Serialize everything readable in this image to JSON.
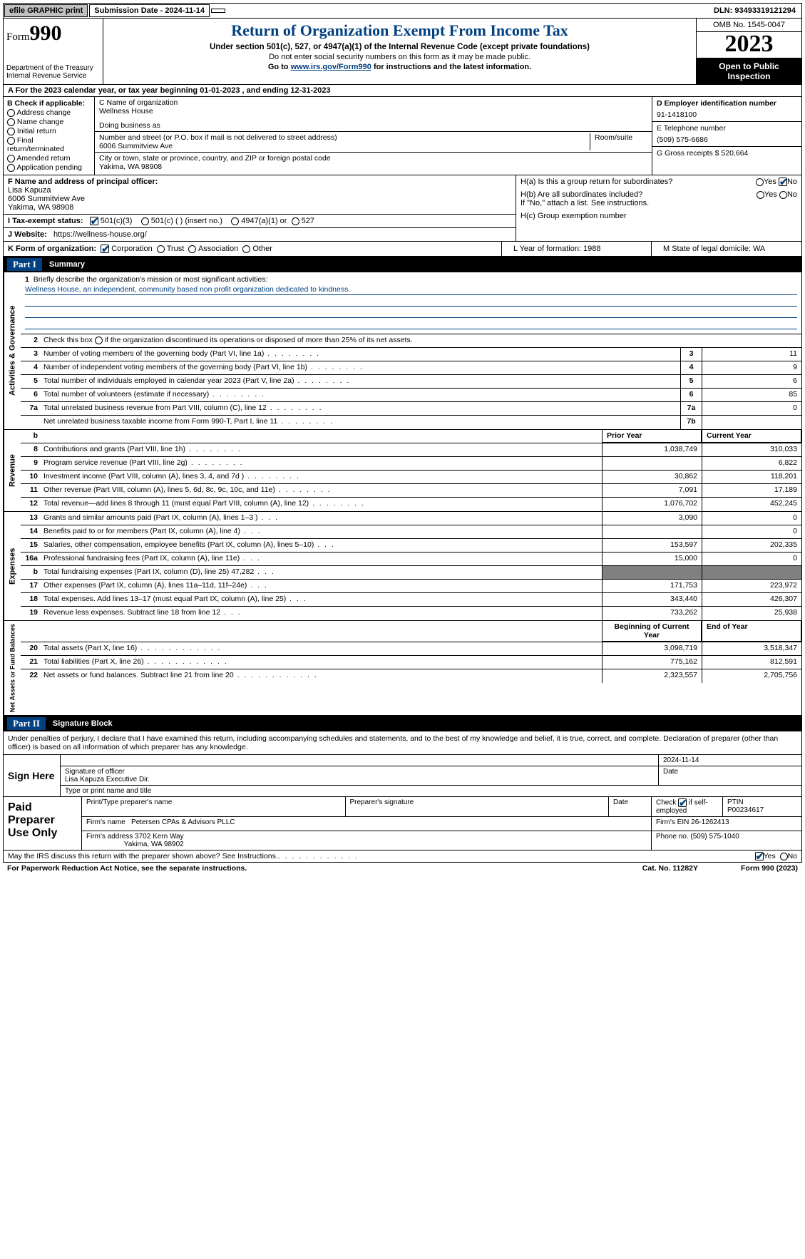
{
  "topbar": {
    "efile": "efile GRAPHIC print",
    "submission_label": "Submission Date - 2024-11-14",
    "dln_label": "DLN: 93493319121294"
  },
  "header": {
    "form_word": "Form",
    "form_num": "990",
    "dept": "Department of the Treasury Internal Revenue Service",
    "title": "Return of Organization Exempt From Income Tax",
    "sub1": "Under section 501(c), 527, or 4947(a)(1) of the Internal Revenue Code (except private foundations)",
    "sub2": "Do not enter social security numbers on this form as it may be made public.",
    "sub3_pre": "Go to ",
    "sub3_link": "www.irs.gov/Form990",
    "sub3_post": " for instructions and the latest information.",
    "omb": "OMB No. 1545-0047",
    "year": "2023",
    "open": "Open to Public Inspection"
  },
  "rowA": "A For the 2023 calendar year, or tax year beginning 01-01-2023   , and ending 12-31-2023",
  "boxB": {
    "label": "B Check if applicable:",
    "items": [
      "Address change",
      "Name change",
      "Initial return",
      "Final return/terminated",
      "Amended return",
      "Application pending"
    ]
  },
  "boxC": {
    "name_label": "C Name of organization",
    "name": "Wellness House",
    "dba_label": "Doing business as",
    "street_label": "Number and street (or P.O. box if mail is not delivered to street address)",
    "room_label": "Room/suite",
    "street": "6006 Summitview Ave",
    "city_label": "City or town, state or province, country, and ZIP or foreign postal code",
    "city": "Yakima, WA  98908"
  },
  "boxD": {
    "label": "D Employer identification number",
    "val": "91-1418100"
  },
  "boxE": {
    "label": "E Telephone number",
    "val": "(509) 575-6686"
  },
  "boxG": {
    "label": "G Gross receipts $ 520,664"
  },
  "boxF": {
    "label": "F  Name and address of principal officer:",
    "name": "Lisa Kapuza",
    "addr1": "6006 Summitview Ave",
    "addr2": "Yakima, WA  98908"
  },
  "boxH": {
    "ha": "H(a)  Is this a group return for subordinates?",
    "hb": "H(b)  Are all subordinates included?",
    "hb_note": "If \"No,\" attach a list. See instructions.",
    "hc": "H(c)  Group exemption number",
    "yes": "Yes",
    "no": "No"
  },
  "rowI": {
    "label": "I   Tax-exempt status:",
    "o1": "501(c)(3)",
    "o2": "501(c) (  ) (insert no.)",
    "o3": "4947(a)(1) or",
    "o4": "527"
  },
  "rowJ": {
    "label": "J   Website:",
    "val": "https://wellness-house.org/"
  },
  "rowK_label": "K Form of organization:",
  "rowK_opts": [
    "Corporation",
    "Trust",
    "Association",
    "Other"
  ],
  "rowL": "L Year of formation: 1988",
  "rowM": "M State of legal domicile: WA",
  "part1": {
    "label": "Part I",
    "title": "Summary"
  },
  "summary": {
    "line1_label": "Briefly describe the organization's mission or most significant activities:",
    "mission": "Wellness House, an independent, community based non profit organization dedicated to kindness.",
    "line2": "Check this box      if the organization discontinued its operations or disposed of more than 25% of its net assets.",
    "rows_gov": [
      {
        "n": "3",
        "d": "Number of voting members of the governing body (Part VI, line 1a)",
        "b": "3",
        "v": "11"
      },
      {
        "n": "4",
        "d": "Number of independent voting members of the governing body (Part VI, line 1b)",
        "b": "4",
        "v": "9"
      },
      {
        "n": "5",
        "d": "Total number of individuals employed in calendar year 2023 (Part V, line 2a)",
        "b": "5",
        "v": "6"
      },
      {
        "n": "6",
        "d": "Total number of volunteers (estimate if necessary)",
        "b": "6",
        "v": "85"
      },
      {
        "n": "7a",
        "d": "Total unrelated business revenue from Part VIII, column (C), line 12",
        "b": "7a",
        "v": "0"
      },
      {
        "n": "",
        "d": "Net unrelated business taxable income from Form 990-T, Part I, line 11",
        "b": "7b",
        "v": ""
      }
    ],
    "col_prior": "Prior Year",
    "col_curr": "Current Year",
    "rows_rev": [
      {
        "n": "8",
        "d": "Contributions and grants (Part VIII, line 1h)",
        "p": "1,038,749",
        "c": "310,033"
      },
      {
        "n": "9",
        "d": "Program service revenue (Part VIII, line 2g)",
        "p": "",
        "c": "6,822"
      },
      {
        "n": "10",
        "d": "Investment income (Part VIII, column (A), lines 3, 4, and 7d )",
        "p": "30,862",
        "c": "118,201"
      },
      {
        "n": "11",
        "d": "Other revenue (Part VIII, column (A), lines 5, 6d, 8c, 9c, 10c, and 11e)",
        "p": "7,091",
        "c": "17,189"
      },
      {
        "n": "12",
        "d": "Total revenue—add lines 8 through 11 (must equal Part VIII, column (A), line 12)",
        "p": "1,076,702",
        "c": "452,245"
      }
    ],
    "rows_exp": [
      {
        "n": "13",
        "d": "Grants and similar amounts paid (Part IX, column (A), lines 1–3 )",
        "p": "3,090",
        "c": "0"
      },
      {
        "n": "14",
        "d": "Benefits paid to or for members (Part IX, column (A), line 4)",
        "p": "",
        "c": "0"
      },
      {
        "n": "15",
        "d": "Salaries, other compensation, employee benefits (Part IX, column (A), lines 5–10)",
        "p": "153,597",
        "c": "202,335"
      },
      {
        "n": "16a",
        "d": "Professional fundraising fees (Part IX, column (A), line 11e)",
        "p": "15,000",
        "c": "0"
      },
      {
        "n": "b",
        "d": "Total fundraising expenses (Part IX, column (D), line 25) 47,282",
        "p": "grey",
        "c": "grey"
      },
      {
        "n": "17",
        "d": "Other expenses (Part IX, column (A), lines 11a–11d, 11f–24e)",
        "p": "171,753",
        "c": "223,972"
      },
      {
        "n": "18",
        "d": "Total expenses. Add lines 13–17 (must equal Part IX, column (A), line 25)",
        "p": "343,440",
        "c": "426,307"
      },
      {
        "n": "19",
        "d": "Revenue less expenses. Subtract line 18 from line 12",
        "p": "733,262",
        "c": "25,938"
      }
    ],
    "col_begin": "Beginning of Current Year",
    "col_end": "End of Year",
    "rows_net": [
      {
        "n": "20",
        "d": "Total assets (Part X, line 16)",
        "p": "3,098,719",
        "c": "3,518,347"
      },
      {
        "n": "21",
        "d": "Total liabilities (Part X, line 26)",
        "p": "775,162",
        "c": "812,591"
      },
      {
        "n": "22",
        "d": "Net assets or fund balances. Subtract line 21 from line 20",
        "p": "2,323,557",
        "c": "2,705,756"
      }
    ]
  },
  "vlabels": {
    "gov": "Activities & Governance",
    "rev": "Revenue",
    "exp": "Expenses",
    "net": "Net Assets or Fund Balances"
  },
  "part2": {
    "label": "Part II",
    "title": "Signature Block"
  },
  "sig_text": "Under penalties of perjury, I declare that I have examined this return, including accompanying schedules and statements, and to the best of my knowledge and belief, it is true, correct, and complete. Declaration of preparer (other than officer) is based on all information of which preparer has any knowledge.",
  "sign": {
    "here": "Sign Here",
    "sig_of": "Signature of officer",
    "date": "Date",
    "date_val": "2024-11-14",
    "name": "Lisa Kapuza  Executive Dir.",
    "type_label": "Type or print name and title"
  },
  "paid": {
    "label": "Paid Preparer Use Only",
    "h1": "Print/Type preparer's name",
    "h2": "Preparer's signature",
    "h3": "Date",
    "h4_pre": "Check",
    "h4_post": "if self-employed",
    "h5": "PTIN",
    "ptin": "P00234617",
    "firm_l": "Firm's name",
    "firm": "Petersen CPAs & Advisors PLLC",
    "ein_l": "Firm's EIN",
    "ein": "26-1262413",
    "addr_l": "Firm's address",
    "addr1": "3702 Kern Way",
    "addr2": "Yakima, WA  98902",
    "phone_l": "Phone no.",
    "phone": "(509) 575-1040"
  },
  "footer": {
    "q": "May the IRS discuss this return with the preparer shown above? See Instructions.",
    "yes": "Yes",
    "no": "No",
    "pra": "For Paperwork Reduction Act Notice, see the separate instructions.",
    "cat": "Cat. No. 11282Y",
    "form": "Form 990 (2023)"
  }
}
